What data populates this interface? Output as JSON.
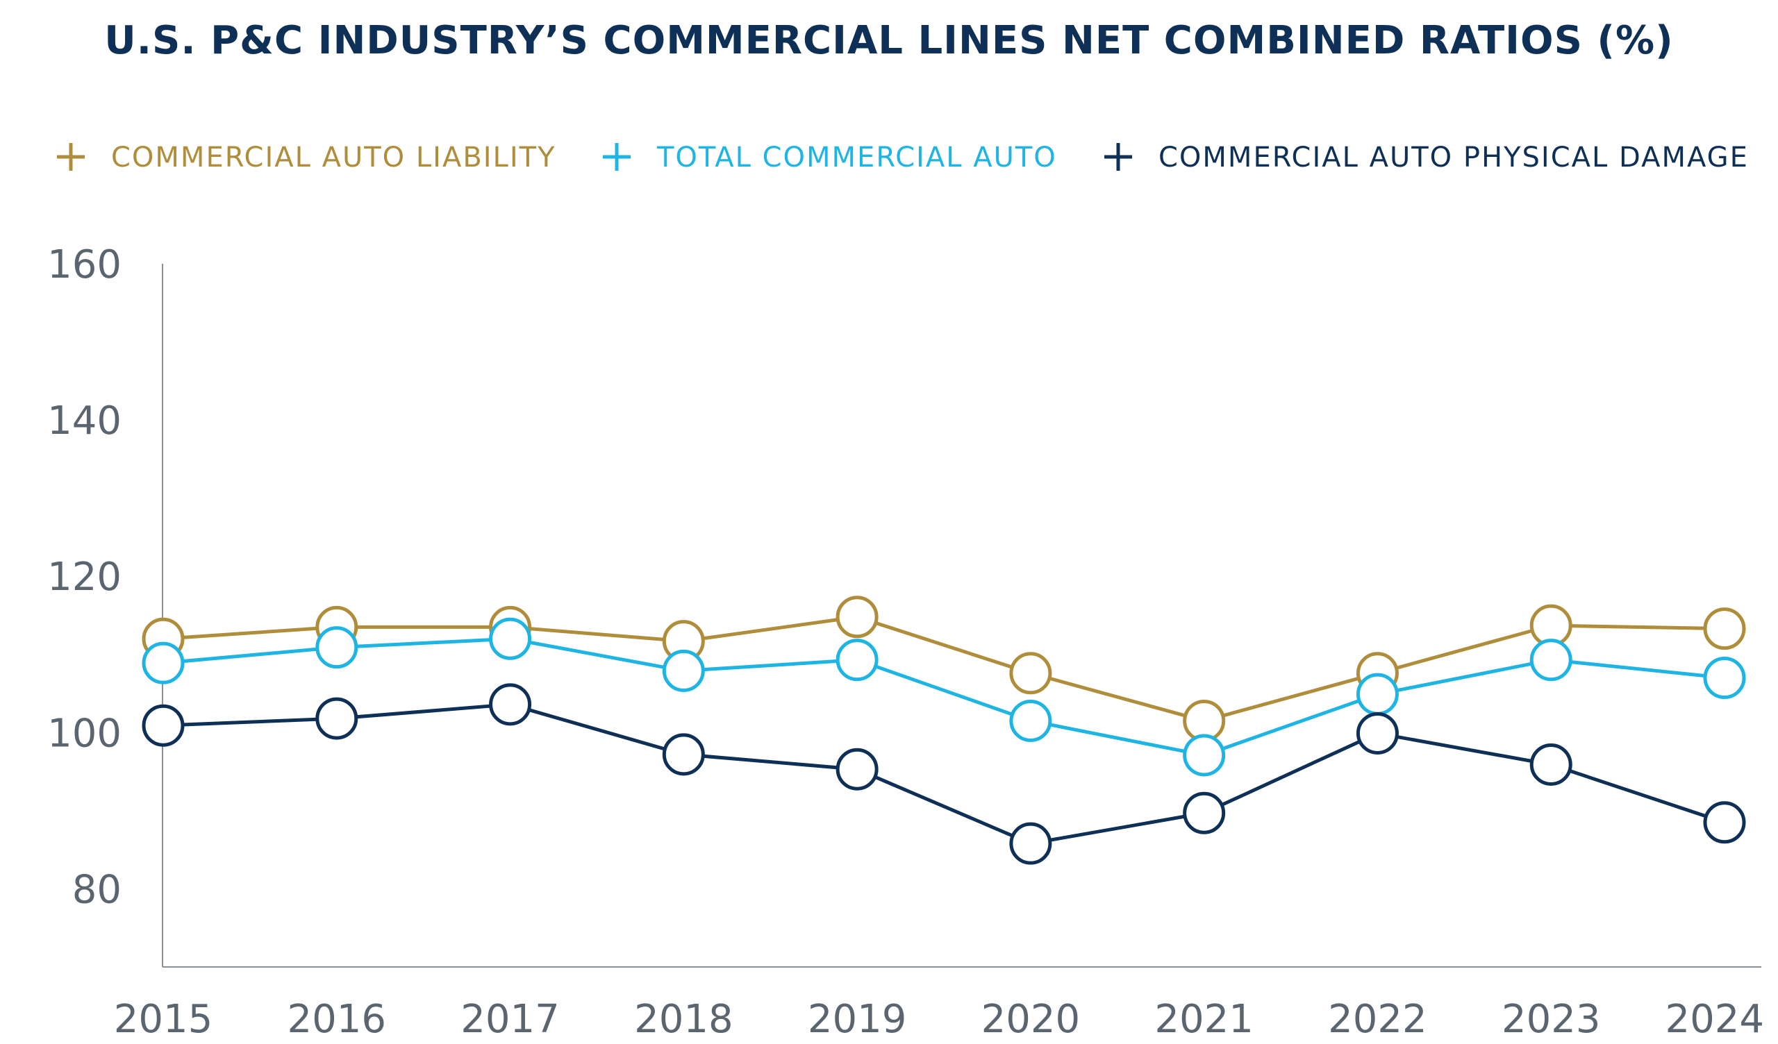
{
  "chart_data": {
    "type": "line",
    "title": "U.S. P&C INDUSTRY’S COMMERCIAL LINES NET COMBINED RATIOS (%)",
    "xlabel": "",
    "ylabel": "",
    "x": [
      "2015",
      "2016",
      "2017",
      "2018",
      "2019",
      "2020",
      "2021",
      "2022",
      "2023",
      "2024"
    ],
    "ylim": [
      70,
      160
    ],
    "yticks": [
      80,
      100,
      120,
      140,
      160
    ],
    "grid": false,
    "legend_position": "top",
    "series": [
      {
        "name": "COMMERCIAL AUTO LIABILITY",
        "color": "#B08D3A",
        "values": [
          112.0,
          113.5,
          113.5,
          111.7,
          114.8,
          107.6,
          101.5,
          107.6,
          113.7,
          113.3
        ]
      },
      {
        "name": "TOTAL COMMERCIAL AUTO",
        "color": "#1EB4E3",
        "values": [
          108.9,
          110.9,
          112.0,
          107.9,
          109.3,
          101.5,
          97.1,
          104.9,
          109.3,
          107.0
        ]
      },
      {
        "name": "COMMERCIAL AUTO PHYSICAL DAMAGE",
        "color": "#0E2F56",
        "values": [
          100.9,
          101.8,
          103.6,
          97.2,
          95.3,
          85.8,
          89.7,
          99.9,
          95.9,
          88.5
        ]
      }
    ]
  },
  "colors": {
    "title": "#0E2F56",
    "axis": "#8A9099",
    "tick_labels": "#5B6570"
  },
  "legend_icon": "plus-icon"
}
